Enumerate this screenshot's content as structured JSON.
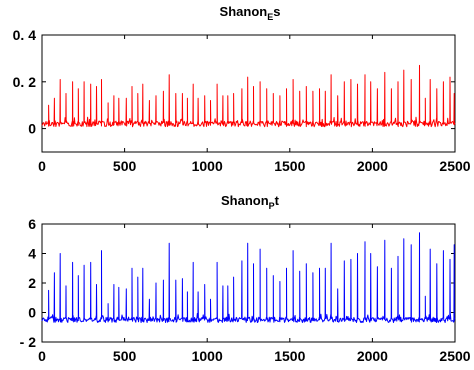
{
  "chart_data": [
    {
      "type": "line",
      "title": {
        "base": "Shanon",
        "sub": "E",
        "suffix": "s"
      },
      "color": "#ff0000",
      "xlim": [
        0,
        2500
      ],
      "ylim": [
        -0.1,
        0.4
      ],
      "xticks": [
        0,
        500,
        1000,
        1500,
        2000,
        2500
      ],
      "xtick_labels": [
        "0",
        "500",
        "1000",
        "1500",
        "2000",
        "2500"
      ],
      "yticks": [
        0,
        0.2,
        0.4
      ],
      "ytick_labels": [
        "0",
        "0. 2",
        "0. 4"
      ],
      "series": [
        {
          "baseline": 0.02,
          "noise": 0.012,
          "spikes": [
            [
              40,
              0.1
            ],
            [
              75,
              0.13
            ],
            [
              110,
              0.21
            ],
            [
              145,
              0.15
            ],
            [
              185,
              0.2
            ],
            [
              220,
              0.17
            ],
            [
              255,
              0.2
            ],
            [
              295,
              0.19
            ],
            [
              330,
              0.18
            ],
            [
              360,
              0.21
            ],
            [
              400,
              0.11
            ],
            [
              435,
              0.14
            ],
            [
              465,
              0.13
            ],
            [
              510,
              0.13
            ],
            [
              545,
              0.18
            ],
            [
              580,
              0.15
            ],
            [
              610,
              0.19
            ],
            [
              650,
              0.12
            ],
            [
              690,
              0.14
            ],
            [
              735,
              0.16
            ],
            [
              770,
              0.23
            ],
            [
              810,
              0.15
            ],
            [
              850,
              0.15
            ],
            [
              880,
              0.13
            ],
            [
              915,
              0.19
            ],
            [
              945,
              0.13
            ],
            [
              985,
              0.14
            ],
            [
              1020,
              0.12
            ],
            [
              1060,
              0.19
            ],
            [
              1095,
              0.14
            ],
            [
              1125,
              0.14
            ],
            [
              1160,
              0.15
            ],
            [
              1210,
              0.17
            ],
            [
              1245,
              0.22
            ],
            [
              1280,
              0.18
            ],
            [
              1320,
              0.2
            ],
            [
              1360,
              0.17
            ],
            [
              1400,
              0.15
            ],
            [
              1440,
              0.14
            ],
            [
              1480,
              0.17
            ],
            [
              1520,
              0.21
            ],
            [
              1560,
              0.16
            ],
            [
              1600,
              0.18
            ],
            [
              1640,
              0.16
            ],
            [
              1680,
              0.17
            ],
            [
              1715,
              0.16
            ],
            [
              1750,
              0.23
            ],
            [
              1790,
              0.14
            ],
            [
              1830,
              0.2
            ],
            [
              1870,
              0.21
            ],
            [
              1910,
              0.19
            ],
            [
              1955,
              0.23
            ],
            [
              1990,
              0.2
            ],
            [
              2030,
              0.17
            ],
            [
              2075,
              0.24
            ],
            [
              2115,
              0.17
            ],
            [
              2155,
              0.2
            ],
            [
              2190,
              0.25
            ],
            [
              2235,
              0.21
            ],
            [
              2285,
              0.27
            ],
            [
              2320,
              0.13
            ],
            [
              2350,
              0.21
            ],
            [
              2390,
              0.17
            ],
            [
              2430,
              0.2
            ],
            [
              2470,
              0.22
            ],
            [
              2495,
              0.15
            ]
          ]
        }
      ]
    },
    {
      "type": "line",
      "title": {
        "base": "Shanon",
        "sub": "P",
        "suffix": "t"
      },
      "color": "#0000ff",
      "xlim": [
        0,
        2500
      ],
      "ylim": [
        -2,
        6
      ],
      "xticks": [
        0,
        500,
        1000,
        1500,
        2000,
        2500
      ],
      "xtick_labels": [
        "0",
        "500",
        "1000",
        "1500",
        "2000",
        "2500"
      ],
      "yticks": [
        -2,
        0,
        2,
        4,
        6
      ],
      "ytick_labels": [
        "- 2",
        "0",
        "2",
        "4",
        "6"
      ],
      "series": [
        {
          "baseline": -0.5,
          "noise": 0.18,
          "spikes": [
            [
              40,
              1.5
            ],
            [
              75,
              2.7
            ],
            [
              110,
              4.0
            ],
            [
              145,
              1.8
            ],
            [
              185,
              3.4
            ],
            [
              220,
              2.5
            ],
            [
              255,
              3.2
            ],
            [
              295,
              3.4
            ],
            [
              330,
              1.9
            ],
            [
              360,
              4.2
            ],
            [
              400,
              0.6
            ],
            [
              435,
              1.9
            ],
            [
              465,
              1.7
            ],
            [
              510,
              1.6
            ],
            [
              545,
              3.0
            ],
            [
              580,
              2.4
            ],
            [
              610,
              3.0
            ],
            [
              650,
              0.9
            ],
            [
              690,
              2.0
            ],
            [
              735,
              2.2
            ],
            [
              770,
              4.7
            ],
            [
              810,
              2.2
            ],
            [
              850,
              2.3
            ],
            [
              880,
              1.4
            ],
            [
              915,
              3.4
            ],
            [
              945,
              1.4
            ],
            [
              985,
              1.9
            ],
            [
              1020,
              0.9
            ],
            [
              1060,
              3.4
            ],
            [
              1095,
              1.8
            ],
            [
              1125,
              1.8
            ],
            [
              1160,
              2.4
            ],
            [
              1210,
              3.5
            ],
            [
              1245,
              4.7
            ],
            [
              1280,
              3.3
            ],
            [
              1320,
              4.3
            ],
            [
              1360,
              3.0
            ],
            [
              1400,
              2.5
            ],
            [
              1440,
              2.1
            ],
            [
              1480,
              3.0
            ],
            [
              1520,
              4.2
            ],
            [
              1560,
              2.8
            ],
            [
              1600,
              3.3
            ],
            [
              1640,
              2.7
            ],
            [
              1680,
              3.0
            ],
            [
              1715,
              3.0
            ],
            [
              1750,
              4.7
            ],
            [
              1790,
              1.6
            ],
            [
              1830,
              3.5
            ],
            [
              1870,
              3.6
            ],
            [
              1910,
              4.0
            ],
            [
              1955,
              4.8
            ],
            [
              1990,
              4.0
            ],
            [
              2030,
              3.1
            ],
            [
              2075,
              4.9
            ],
            [
              2115,
              3.0
            ],
            [
              2155,
              3.8
            ],
            [
              2190,
              5.0
            ],
            [
              2235,
              4.6
            ],
            [
              2285,
              5.4
            ],
            [
              2320,
              1.1
            ],
            [
              2350,
              4.3
            ],
            [
              2390,
              3.3
            ],
            [
              2430,
              4.2
            ],
            [
              2470,
              3.6
            ],
            [
              2495,
              4.6
            ]
          ]
        }
      ]
    }
  ]
}
